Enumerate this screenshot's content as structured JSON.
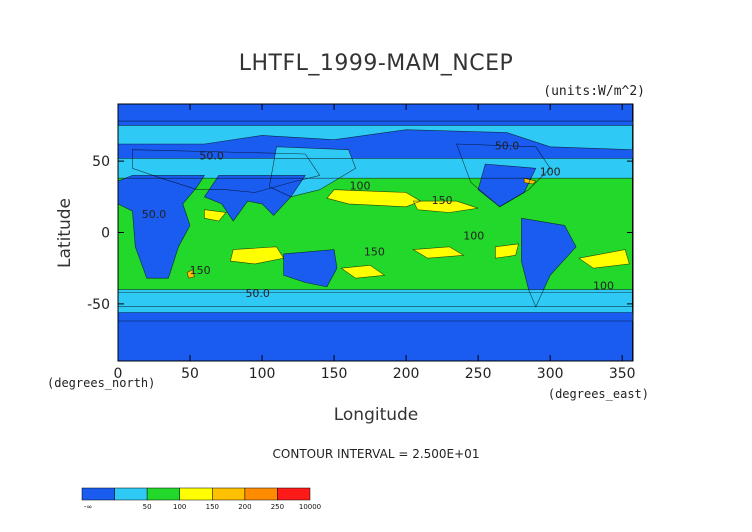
{
  "chart_data": {
    "type": "heatmap",
    "title": "LHTFL_1999-MAM_NCEP",
    "units_label": "(units:W/m^2)",
    "xlabel": "Longitude",
    "ylabel": "Latitude",
    "x_note": "(degrees_north)",
    "y_note": "(degrees_east)",
    "xlim": [
      0,
      357.5
    ],
    "ylim": [
      -90,
      90
    ],
    "x_ticks": [
      0,
      50,
      100,
      150,
      200,
      250,
      300,
      350
    ],
    "y_ticks": [
      -50,
      0,
      50
    ],
    "contour_interval_text": "CONTOUR INTERVAL = 2.500E+01",
    "contour_labels": [
      {
        "text": "50.0",
        "x": 65,
        "y": 51
      },
      {
        "text": "50.0",
        "x": 25,
        "y": 10
      },
      {
        "text": "100",
        "x": 168,
        "y": 30
      },
      {
        "text": "150",
        "x": 225,
        "y": 20
      },
      {
        "text": "100",
        "x": 247,
        "y": -5
      },
      {
        "text": "150",
        "x": 178,
        "y": -16
      },
      {
        "text": "150",
        "x": 57,
        "y": -29
      },
      {
        "text": "50.0",
        "x": 97,
        "y": -45
      },
      {
        "text": "50.0",
        "x": 270,
        "y": 58
      },
      {
        "text": "100",
        "x": 300,
        "y": 40
      },
      {
        "text": "100",
        "x": 337,
        "y": -40
      }
    ],
    "legend": {
      "levels": [
        "-∞",
        "50",
        "100",
        "150",
        "200",
        "250",
        "10000"
      ],
      "colors": [
        "#1a5cf0",
        "#2fc9f5",
        "#22d82a",
        "#ffff00",
        "#ffc000",
        "#ff8c00",
        "#ff1a1a"
      ]
    },
    "regions": [
      {
        "level": 1,
        "points": [
          [
            0,
            75
          ],
          [
            357,
            75
          ],
          [
            357,
            58
          ],
          [
            300,
            60
          ],
          [
            270,
            70
          ],
          [
            200,
            72
          ],
          [
            150,
            65
          ],
          [
            100,
            68
          ],
          [
            60,
            62
          ],
          [
            0,
            62
          ]
        ]
      },
      {
        "level": 0,
        "points": [
          [
            10,
            58
          ],
          [
            130,
            55
          ],
          [
            140,
            40
          ],
          [
            120,
            35
          ],
          [
            95,
            28
          ],
          [
            75,
            30
          ],
          [
            55,
            30
          ],
          [
            30,
            38
          ],
          [
            10,
            45
          ]
        ]
      },
      {
        "level": 0,
        "points": [
          [
            235,
            62
          ],
          [
            290,
            60
          ],
          [
            300,
            45
          ],
          [
            285,
            30
          ],
          [
            265,
            18
          ],
          [
            245,
            35
          ]
        ]
      },
      {
        "level": 1,
        "points": [
          [
            0,
            52
          ],
          [
            357,
            52
          ],
          [
            357,
            -52
          ],
          [
            0,
            -52
          ]
        ]
      },
      {
        "level": 2,
        "points": [
          [
            0,
            38
          ],
          [
            357,
            38
          ],
          [
            357,
            -42
          ],
          [
            0,
            -42
          ]
        ]
      },
      {
        "level": 1,
        "points": [
          [
            110,
            60
          ],
          [
            160,
            58
          ],
          [
            165,
            45
          ],
          [
            140,
            30
          ],
          [
            120,
            25
          ],
          [
            105,
            32
          ]
        ]
      },
      {
        "level": 0,
        "points": [
          [
            10,
            40
          ],
          [
            60,
            40
          ],
          [
            55,
            32
          ],
          [
            45,
            20
          ],
          [
            50,
            5
          ],
          [
            42,
            -10
          ],
          [
            35,
            -32
          ],
          [
            20,
            -32
          ],
          [
            12,
            -10
          ],
          [
            10,
            15
          ],
          [
            0,
            20
          ],
          [
            0,
            36
          ]
        ]
      },
      {
        "level": 0,
        "points": [
          [
            70,
            40
          ],
          [
            130,
            40
          ],
          [
            120,
            25
          ],
          [
            108,
            12
          ],
          [
            100,
            20
          ],
          [
            90,
            22
          ],
          [
            80,
            8
          ],
          [
            72,
            20
          ],
          [
            60,
            25
          ]
        ]
      },
      {
        "level": 0,
        "points": [
          [
            115,
            -15
          ],
          [
            150,
            -12
          ],
          [
            152,
            -25
          ],
          [
            145,
            -38
          ],
          [
            130,
            -35
          ],
          [
            115,
            -30
          ]
        ]
      },
      {
        "level": 0,
        "points": [
          [
            280,
            10
          ],
          [
            310,
            5
          ],
          [
            318,
            -10
          ],
          [
            300,
            -30
          ],
          [
            290,
            -52
          ],
          [
            285,
            -40
          ],
          [
            280,
            -20
          ]
        ]
      },
      {
        "level": 0,
        "points": [
          [
            255,
            48
          ],
          [
            290,
            45
          ],
          [
            282,
            28
          ],
          [
            265,
            18
          ],
          [
            250,
            30
          ]
        ]
      },
      {
        "level": 1,
        "points": [
          [
            0,
            -40
          ],
          [
            357,
            -40
          ],
          [
            357,
            -56
          ],
          [
            0,
            -56
          ]
        ]
      },
      {
        "level": 3,
        "points": [
          [
            150,
            30
          ],
          [
            200,
            28
          ],
          [
            210,
            22
          ],
          [
            200,
            18
          ],
          [
            160,
            20
          ],
          [
            145,
            24
          ]
        ]
      },
      {
        "level": 3,
        "points": [
          [
            205,
            22
          ],
          [
            235,
            22
          ],
          [
            250,
            17
          ],
          [
            230,
            14
          ],
          [
            208,
            16
          ]
        ]
      },
      {
        "level": 3,
        "points": [
          [
            60,
            16
          ],
          [
            75,
            14
          ],
          [
            70,
            8
          ],
          [
            60,
            10
          ]
        ]
      },
      {
        "level": 3,
        "points": [
          [
            80,
            -12
          ],
          [
            110,
            -10
          ],
          [
            115,
            -18
          ],
          [
            95,
            -22
          ],
          [
            78,
            -20
          ]
        ]
      },
      {
        "level": 3,
        "points": [
          [
            155,
            -25
          ],
          [
            175,
            -23
          ],
          [
            185,
            -30
          ],
          [
            165,
            -32
          ]
        ]
      },
      {
        "level": 3,
        "points": [
          [
            205,
            -12
          ],
          [
            230,
            -10
          ],
          [
            240,
            -16
          ],
          [
            215,
            -18
          ]
        ]
      },
      {
        "level": 3,
        "points": [
          [
            320,
            -18
          ],
          [
            352,
            -12
          ],
          [
            355,
            -22
          ],
          [
            330,
            -25
          ]
        ]
      },
      {
        "level": 3,
        "points": [
          [
            262,
            -10
          ],
          [
            278,
            -8
          ],
          [
            276,
            -16
          ],
          [
            262,
            -18
          ]
        ]
      },
      {
        "level": 4,
        "points": [
          [
            48,
            -28
          ],
          [
            52,
            -26
          ],
          [
            53,
            -31
          ],
          [
            49,
            -32
          ]
        ]
      },
      {
        "level": 4,
        "points": [
          [
            282,
            38
          ],
          [
            290,
            36
          ],
          [
            288,
            34
          ],
          [
            282,
            35
          ]
        ]
      },
      {
        "level": 0,
        "points": [
          [
            0,
            -62
          ],
          [
            357,
            -62
          ],
          [
            357,
            -90
          ],
          [
            0,
            -90
          ]
        ]
      },
      {
        "level": 0,
        "points": [
          [
            0,
            90
          ],
          [
            357,
            90
          ],
          [
            357,
            78
          ],
          [
            0,
            78
          ]
        ]
      }
    ]
  }
}
